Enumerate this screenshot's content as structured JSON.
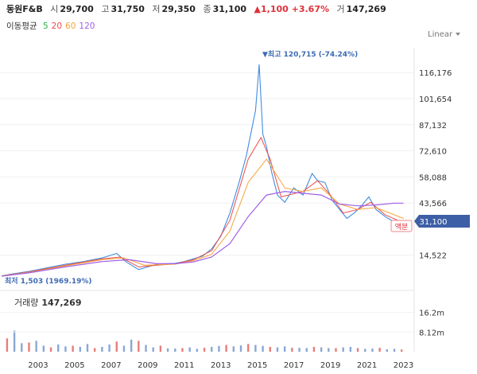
{
  "header": {
    "name": "동원F&B",
    "open_label": "시",
    "open": "29,700",
    "high_label": "고",
    "high": "31,750",
    "low_label": "저",
    "low": "29,350",
    "close_label": "종",
    "close": "31,100",
    "change": "▲1,100 +3.67%",
    "volume_label": "거",
    "volume": "147,269"
  },
  "ma": {
    "label": "이동평균",
    "periods": [
      "5",
      "20",
      "60",
      "120"
    ],
    "colors": [
      "#27b24a",
      "#f04a4a",
      "#f5a43a",
      "#a25fe6"
    ]
  },
  "scale_select": "Linear",
  "price_tag": "31,100",
  "badge": "액분",
  "annotations": {
    "high": "▼최고 120,715 (-74.24%)",
    "low": "최저 1,503 (1969.19%)"
  },
  "volume_panel": {
    "title": "거래량",
    "value": "147,269"
  },
  "chart_data": [
    {
      "type": "line",
      "scale": "linear",
      "y_ticks": [
        "116,176",
        "101,654",
        "87,132",
        "72,610",
        "58,088",
        "43,566",
        "14,522"
      ],
      "y_tick_values": [
        116176,
        101654,
        87132,
        72610,
        58088,
        43566,
        14522
      ],
      "x_ticks": [
        "2003",
        "2005",
        "2007",
        "2009",
        "2011",
        "2013",
        "2015",
        "2017",
        "2019",
        "2021",
        "2023"
      ],
      "ylim": [
        -2000,
        130000
      ],
      "series": [
        {
          "values": [
            [
              2001.5,
              3000
            ],
            [
              2002,
              4000
            ],
            [
              2003,
              5500
            ],
            [
              2004,
              7500
            ],
            [
              2005,
              9500
            ],
            [
              2006,
              11000
            ],
            [
              2007,
              13000
            ],
            [
              2007.8,
              15500
            ],
            [
              2008.3,
              11000
            ],
            [
              2009,
              6500
            ],
            [
              2009.5,
              8000
            ],
            [
              2010,
              9500
            ],
            [
              2011,
              10000
            ],
            [
              2011.5,
              11000
            ],
            [
              2012,
              12500
            ],
            [
              2012.5,
              14000
            ],
            [
              2013,
              18000
            ],
            [
              2013.5,
              25000
            ],
            [
              2014,
              38000
            ],
            [
              2014.5,
              55000
            ],
            [
              2014.9,
              70000
            ],
            [
              2015.2,
              85000
            ],
            [
              2015.4,
              95000
            ],
            [
              2015.6,
              120715
            ],
            [
              2015.8,
              82000
            ],
            [
              2016,
              75000
            ],
            [
              2016.3,
              60000
            ],
            [
              2016.6,
              48000
            ],
            [
              2017,
              44000
            ],
            [
              2017.5,
              52000
            ],
            [
              2018,
              48000
            ],
            [
              2018.5,
              60000
            ],
            [
              2018.8,
              56000
            ],
            [
              2019.2,
              55000
            ],
            [
              2019.6,
              45000
            ],
            [
              2020,
              40000
            ],
            [
              2020.4,
              35000
            ],
            [
              2020.8,
              38000
            ],
            [
              2021.2,
              42000
            ],
            [
              2021.6,
              47000
            ],
            [
              2022,
              40000
            ],
            [
              2022.5,
              36000
            ],
            [
              2023,
              33000
            ],
            [
              2023.5,
              31100
            ]
          ]
        },
        {
          "values": [
            [
              2001.5,
              3000
            ],
            [
              2003,
              5200
            ],
            [
              2005,
              9000
            ],
            [
              2007,
              12500
            ],
            [
              2008,
              13500
            ],
            [
              2009,
              8000
            ],
            [
              2011,
              9800
            ],
            [
              2012,
              12000
            ],
            [
              2013,
              17000
            ],
            [
              2014,
              34000
            ],
            [
              2015,
              68000
            ],
            [
              2015.7,
              80000
            ],
            [
              2016.2,
              68000
            ],
            [
              2016.8,
              47000
            ],
            [
              2018,
              50000
            ],
            [
              2018.8,
              56000
            ],
            [
              2019.5,
              48000
            ],
            [
              2020.2,
              38000
            ],
            [
              2021,
              40000
            ],
            [
              2021.7,
              44000
            ],
            [
              2022.5,
              37000
            ],
            [
              2023.5,
              32500
            ]
          ]
        },
        {
          "values": [
            [
              2001.5,
              2900
            ],
            [
              2003,
              5000
            ],
            [
              2005,
              8600
            ],
            [
              2007,
              12000
            ],
            [
              2008.2,
              13000
            ],
            [
              2009.3,
              9000
            ],
            [
              2011,
              9500
            ],
            [
              2012,
              11500
            ],
            [
              2013,
              15000
            ],
            [
              2014,
              28000
            ],
            [
              2015,
              55000
            ],
            [
              2016,
              68000
            ],
            [
              2017,
              52000
            ],
            [
              2018,
              50000
            ],
            [
              2019,
              52000
            ],
            [
              2020,
              43000
            ],
            [
              2021,
              40000
            ],
            [
              2022,
              41000
            ],
            [
              2023.5,
              35000
            ]
          ]
        },
        {
          "values": [
            [
              2001.5,
              2800
            ],
            [
              2003,
              4700
            ],
            [
              2005,
              8000
            ],
            [
              2007,
              11000
            ],
            [
              2008.5,
              12000
            ],
            [
              2010,
              9800
            ],
            [
              2011,
              9800
            ],
            [
              2012,
              10800
            ],
            [
              2013,
              13500
            ],
            [
              2014,
              21000
            ],
            [
              2015,
              36000
            ],
            [
              2016,
              48000
            ],
            [
              2017,
              50000
            ],
            [
              2018,
              49000
            ],
            [
              2019,
              48000
            ],
            [
              2020,
              43000
            ],
            [
              2021,
              42000
            ],
            [
              2022,
              42500
            ],
            [
              2023,
              43500
            ],
            [
              2023.5,
              43500
            ]
          ]
        }
      ]
    },
    {
      "type": "bar",
      "y_ticks": [
        "16.2m",
        "8.12m"
      ],
      "y_tick_values": [
        16.2,
        8.12
      ],
      "ylim": [
        0,
        22
      ],
      "x": [
        2001.8,
        2002.2,
        2002.6,
        2003.0,
        2003.4,
        2003.8,
        2004.2,
        2004.6,
        2005.0,
        2005.4,
        2005.8,
        2006.2,
        2006.6,
        2007.0,
        2007.4,
        2007.8,
        2008.2,
        2008.6,
        2009.0,
        2009.4,
        2009.8,
        2010.2,
        2010.6,
        2011.0,
        2011.4,
        2011.8,
        2012.2,
        2012.6,
        2013.0,
        2013.4,
        2013.8,
        2014.2,
        2014.6,
        2015.0,
        2015.4,
        2015.8,
        2016.2,
        2016.6,
        2017.0,
        2017.4,
        2017.8,
        2018.2,
        2018.6,
        2019.0,
        2019.4,
        2019.8,
        2020.2,
        2020.6,
        2021.0,
        2021.4,
        2021.8,
        2022.2,
        2022.6,
        2023.0,
        2023.4
      ],
      "values": [
        5.5,
        8.7,
        3.5,
        3.8,
        4.5,
        2.5,
        1.8,
        3.0,
        2.2,
        2.5,
        2.0,
        3.2,
        1.5,
        2.0,
        3.0,
        4.2,
        2.5,
        5.0,
        4.5,
        2.8,
        1.8,
        2.5,
        1.4,
        1.3,
        1.5,
        1.8,
        1.2,
        1.6,
        2.0,
        2.4,
        2.8,
        2.2,
        2.6,
        3.2,
        2.8,
        2.4,
        2.0,
        1.8,
        2.2,
        1.6,
        1.6,
        1.5,
        2.0,
        1.8,
        1.5,
        1.5,
        1.8,
        2.0,
        1.5,
        1.2,
        1.3,
        1.6,
        1.0,
        1.2,
        0.9
      ]
    }
  ]
}
